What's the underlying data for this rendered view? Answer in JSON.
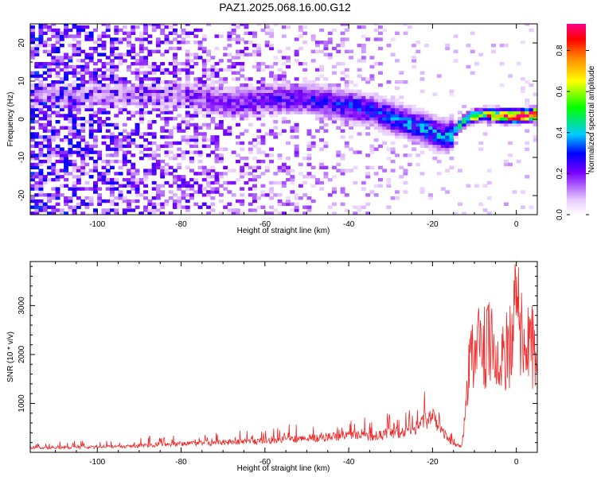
{
  "title": "PAZ1.2025.068.16.00.G12",
  "colors": {
    "snr_line": "#ee2a2a",
    "frame": "#000000"
  },
  "chart_data": [
    {
      "type": "heatmap",
      "xlabel": "Height of straight line (km)",
      "ylabel": "Frequency (Hz)",
      "xlim": [
        -116,
        5
      ],
      "ylim": [
        -25,
        25
      ],
      "x_ticks": [
        -100,
        -80,
        -60,
        -40,
        -20,
        0
      ],
      "y_ticks": [
        -20,
        -10,
        0,
        10,
        20
      ],
      "colorbar": {
        "label": "Normalized spectral amplitude",
        "range": [
          0.0,
          0.93
        ],
        "ticks": [
          "0.0",
          "0.2",
          "0.4",
          "0.6",
          "0.8"
        ],
        "tick_values": [
          0.0,
          0.2,
          0.4,
          0.6,
          0.8
        ]
      },
      "ridge": [
        {
          "x": -85,
          "f": 6,
          "v": 0.1
        },
        {
          "x": -80,
          "f": 6,
          "v": 0.12
        },
        {
          "x": -75,
          "f": 5,
          "v": 0.15
        },
        {
          "x": -70,
          "f": 4,
          "v": 0.18
        },
        {
          "x": -65,
          "f": 4,
          "v": 0.2
        },
        {
          "x": -60,
          "f": 5,
          "v": 0.2
        },
        {
          "x": -55,
          "f": 5,
          "v": 0.22
        },
        {
          "x": -50,
          "f": 5,
          "v": 0.24
        },
        {
          "x": -45,
          "f": 4,
          "v": 0.25
        },
        {
          "x": -40,
          "f": 3,
          "v": 0.28
        },
        {
          "x": -35,
          "f": 2,
          "v": 0.28
        },
        {
          "x": -30,
          "f": 0,
          "v": 0.3
        },
        {
          "x": -25,
          "f": -2,
          "v": 0.32
        },
        {
          "x": -20,
          "f": -4,
          "v": 0.35
        },
        {
          "x": -17,
          "f": -5,
          "v": 0.35
        },
        {
          "x": -12,
          "f": 0,
          "v": 0.55
        },
        {
          "x": -8,
          "f": 1,
          "v": 0.68
        },
        {
          "x": -4,
          "f": 0.5,
          "v": 0.85
        },
        {
          "x": 0,
          "f": 0.5,
          "v": 0.9
        },
        {
          "x": 4,
          "f": 1,
          "v": 0.93
        }
      ]
    },
    {
      "type": "line",
      "xlabel": "Height of straight line (km)",
      "ylabel": "SNR (10 * v/v)",
      "xlim": [
        -116,
        5
      ],
      "ylim": [
        0,
        3900
      ],
      "x_ticks": [
        -100,
        -80,
        -60,
        -40,
        -20,
        0
      ],
      "y_ticks": [
        1000,
        2000,
        3000
      ],
      "series": [
        {
          "x": [
            -116,
            -110,
            -105,
            -100,
            -95,
            -90,
            -85,
            -80,
            -75,
            -70,
            -65,
            -60,
            -55,
            -50,
            -45,
            -40,
            -35,
            -30,
            -25,
            -22,
            -20,
            -18,
            -15,
            -13,
            -12,
            -11,
            -10,
            -9,
            -8,
            -6,
            -4,
            -2,
            -1,
            0,
            1,
            2,
            4,
            5
          ],
          "y": [
            130,
            120,
            130,
            140,
            150,
            170,
            190,
            220,
            240,
            260,
            280,
            300,
            330,
            360,
            400,
            460,
            420,
            480,
            600,
            800,
            1000,
            560,
            200,
            150,
            1200,
            2400,
            2500,
            2900,
            2600,
            2700,
            2500,
            2700,
            2800,
            3800,
            3100,
            2500,
            2700,
            1800
          ]
        }
      ]
    }
  ]
}
